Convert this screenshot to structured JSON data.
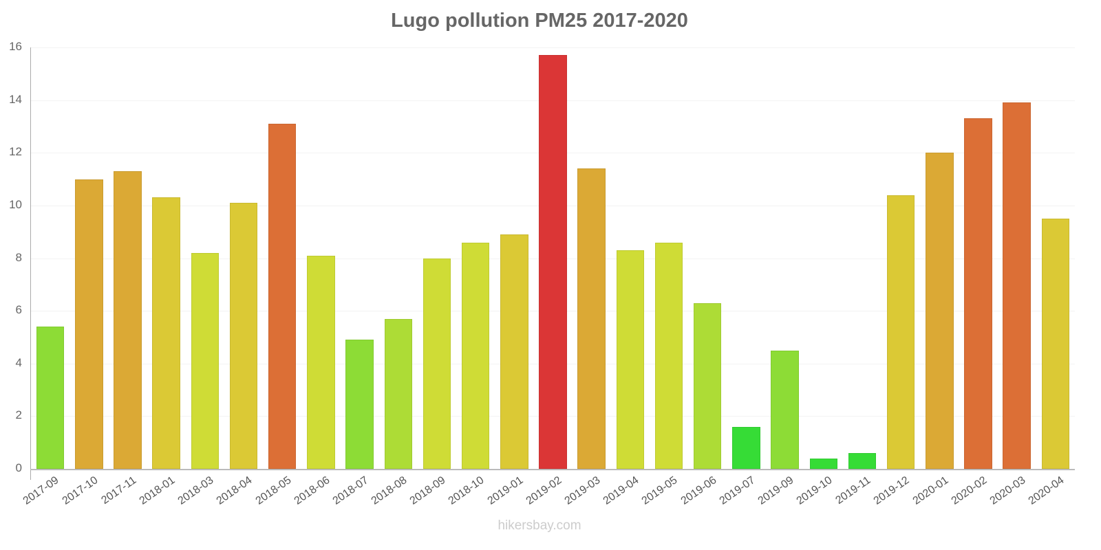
{
  "chart_data": {
    "type": "bar",
    "title": "Lugo pollution PM25 2017-2020",
    "xlabel": "",
    "ylabel": "",
    "ylim": [
      0,
      16
    ],
    "yticks": [
      0,
      2,
      4,
      6,
      8,
      10,
      12,
      14,
      16
    ],
    "grid": true,
    "legend": null,
    "categories": [
      "2017-09",
      "2017-10",
      "2017-11",
      "2018-01",
      "2018-03",
      "2018-04",
      "2018-05",
      "2018-06",
      "2018-07",
      "2018-08",
      "2018-09",
      "2018-10",
      "2019-01",
      "2019-02",
      "2019-03",
      "2019-04",
      "2019-05",
      "2019-06",
      "2019-07",
      "2019-09",
      "2019-10",
      "2019-11",
      "2019-12",
      "2020-01",
      "2020-02",
      "2020-03",
      "2020-04"
    ],
    "values": [
      5.4,
      11.0,
      11.3,
      10.3,
      8.2,
      10.1,
      13.1,
      8.1,
      4.9,
      5.7,
      8.0,
      8.6,
      8.9,
      15.7,
      11.4,
      8.3,
      8.6,
      6.3,
      1.6,
      4.5,
      0.4,
      0.6,
      10.4,
      12.0,
      13.3,
      13.9,
      9.5
    ],
    "colors": [
      "#8ddc36",
      "#dba935",
      "#dba935",
      "#dbc935",
      "#cfdc36",
      "#dbc935",
      "#dc6f36",
      "#cfdc36",
      "#8ddc36",
      "#addc36",
      "#cfdc36",
      "#cfdc36",
      "#dbc935",
      "#db3636",
      "#dba935",
      "#cfdc36",
      "#cfdc36",
      "#addc36",
      "#36dc36",
      "#8ddc36",
      "#36dc36",
      "#36dc36",
      "#dbc935",
      "#dba935",
      "#dc6f36",
      "#dc6f36",
      "#dbc935"
    ]
  },
  "watermark": "hikersbay.com"
}
